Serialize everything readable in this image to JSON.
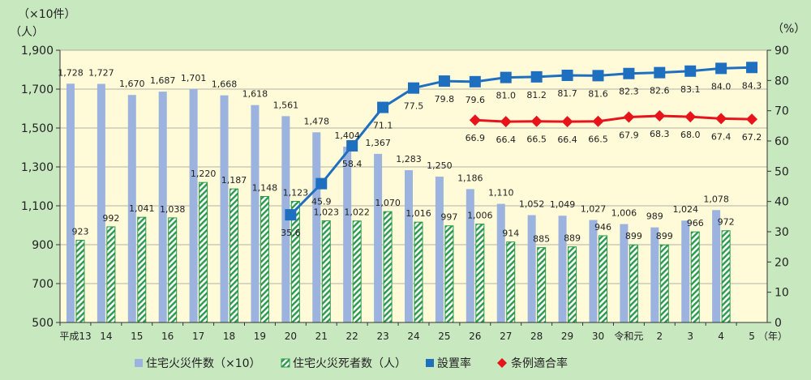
{
  "chart_data": {
    "type": "bar+line",
    "left_unit_1": "（×10件）",
    "left_unit_2": "（人）",
    "right_unit": "（%）",
    "x_axis_suffix": "（年）",
    "categories": [
      "平成13",
      "14",
      "15",
      "16",
      "17",
      "18",
      "19",
      "20",
      "21",
      "22",
      "23",
      "24",
      "25",
      "26",
      "27",
      "28",
      "29",
      "30",
      "令和元",
      "2",
      "3",
      "4",
      "5"
    ],
    "left_axis": {
      "min": 500,
      "max": 1900,
      "ticks": [
        "500",
        "700",
        "900",
        "1,100",
        "1,300",
        "1,500",
        "1,700",
        "1,900"
      ]
    },
    "right_axis": {
      "min": 0,
      "max": 90,
      "ticks": [
        "0",
        "10",
        "20",
        "30",
        "40",
        "50",
        "60",
        "70",
        "80",
        "90"
      ]
    },
    "series": [
      {
        "name": "住宅火災件数（×10）",
        "kind": "bar",
        "axis": "left",
        "color": "#9bb3de",
        "values": [
          1728,
          1727,
          1670,
          1687,
          1701,
          1668,
          1618,
          1561,
          1478,
          1404,
          1367,
          1283,
          1250,
          1186,
          1110,
          1052,
          1049,
          1027,
          1006,
          989,
          1024,
          1078,
          null
        ],
        "labels": [
          "1,728",
          "1,727",
          "1,670",
          "1,687",
          "1,701",
          "1,668",
          "1,618",
          "1,561",
          "1,478",
          "1,404",
          "1,367",
          "1,283",
          "1,250",
          "1,186",
          "1,110",
          "1,052",
          "1,049",
          "1,027",
          "1,006",
          "989",
          "1,024",
          "1,078",
          ""
        ]
      },
      {
        "name": "住宅火災死者数（人）",
        "kind": "bar",
        "axis": "left",
        "color": "#2a9a4a",
        "values": [
          923,
          992,
          1041,
          1038,
          1220,
          1187,
          1148,
          1123,
          1023,
          1022,
          1070,
          1016,
          997,
          1006,
          914,
          885,
          889,
          946,
          899,
          899,
          966,
          972,
          null
        ],
        "labels": [
          "923",
          "992",
          "1,041",
          "1,038",
          "1,220",
          "1,187",
          "1,148",
          "1,123",
          "1,023",
          "1,022",
          "1,070",
          "1,016",
          "997",
          "1,006",
          "914",
          "885",
          "889",
          "946",
          "899",
          "899",
          "966",
          "972",
          ""
        ]
      },
      {
        "name": "設置率",
        "kind": "line",
        "axis": "right",
        "color": "#1f6fc0",
        "values": [
          null,
          null,
          null,
          null,
          null,
          null,
          null,
          35.6,
          45.9,
          58.4,
          71.1,
          77.5,
          79.8,
          79.6,
          81.0,
          81.2,
          81.7,
          81.6,
          82.3,
          82.6,
          83.1,
          84.0,
          84.3
        ],
        "labels": [
          "",
          "",
          "",
          "",
          "",
          "",
          "",
          "35.6",
          "45.9",
          "58.4",
          "71.1",
          "77.5",
          "79.8",
          "79.6",
          "81.0",
          "81.2",
          "81.7",
          "81.6",
          "82.3",
          "82.6",
          "83.1",
          "84.0",
          "84.3"
        ]
      },
      {
        "name": "条例適合率",
        "kind": "line",
        "axis": "right",
        "color": "#e8141c",
        "values": [
          null,
          null,
          null,
          null,
          null,
          null,
          null,
          null,
          null,
          null,
          null,
          null,
          null,
          66.9,
          66.4,
          66.5,
          66.4,
          66.5,
          67.9,
          68.3,
          68.0,
          67.4,
          67.2
        ],
        "labels": [
          "",
          "",
          "",
          "",
          "",
          "",
          "",
          "",
          "",
          "",
          "",
          "",
          "",
          "66.9",
          "66.4",
          "66.5",
          "66.4",
          "66.5",
          "67.9",
          "68.3",
          "68.0",
          "67.4",
          "67.2"
        ]
      }
    ],
    "grid": "horizontal",
    "legend_position": "bottom"
  }
}
